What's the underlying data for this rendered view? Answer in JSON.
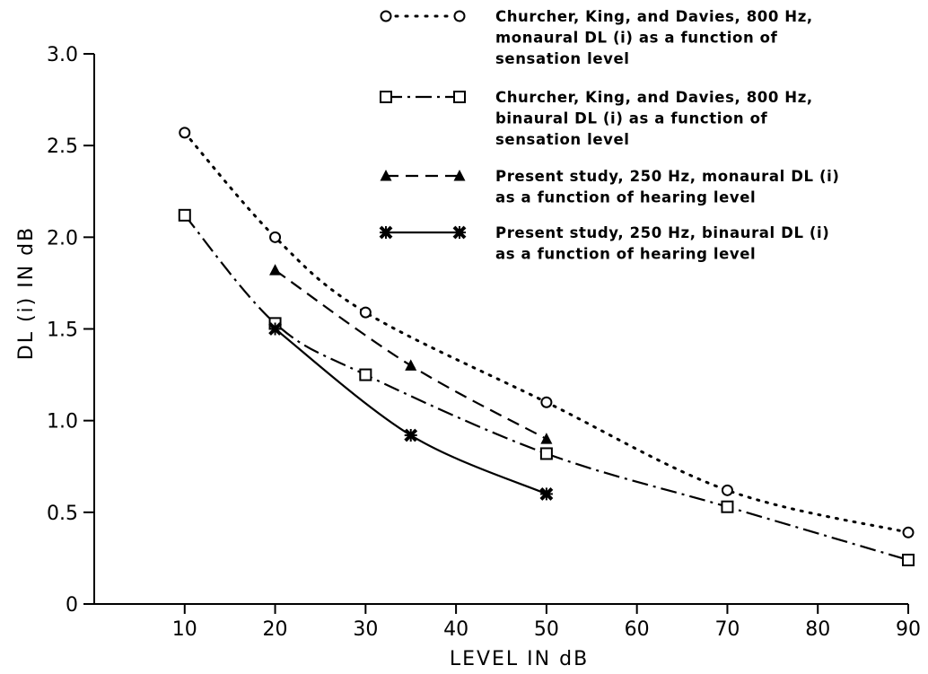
{
  "chart_data": {
    "type": "line",
    "title": "",
    "xlabel": "LEVEL IN dB",
    "ylabel": "DL (i) IN dB",
    "xlim": [
      0,
      90
    ],
    "ylim": [
      0,
      3.0
    ],
    "x_ticks": [
      "10",
      "20",
      "30",
      "40",
      "50",
      "60",
      "70",
      "80",
      "90"
    ],
    "y_ticks": [
      "0",
      "0.5",
      "1.0",
      "1.5",
      "2.0",
      "2.5",
      "3.0"
    ],
    "grid": false,
    "legend_position": "top-right",
    "series": [
      {
        "name": "Churcher, King, and Davies, 800 Hz, monaural DL (i) as a function of sensation level",
        "legend_lines": [
          "Churcher, King, and Davies, 800 Hz,",
          "monaural DL (i) as a function of",
          "sensation level"
        ],
        "marker": "circle",
        "line_style": "dotted",
        "points": [
          [
            10,
            2.57
          ],
          [
            20,
            2.0
          ],
          [
            30,
            1.59
          ],
          [
            50,
            1.1
          ],
          [
            70,
            0.62
          ],
          [
            90,
            0.39
          ]
        ]
      },
      {
        "name": "Churcher, King, and Davies, 800 Hz, binaural DL (i) as a function of sensation level",
        "legend_lines": [
          "Churcher, King, and Davies, 800 Hz,",
          "binaural DL (i) as a function of",
          "sensation level"
        ],
        "marker": "square",
        "line_style": "dashdot",
        "points": [
          [
            10,
            2.12
          ],
          [
            20,
            1.53
          ],
          [
            30,
            1.25
          ],
          [
            50,
            0.82
          ],
          [
            70,
            0.53
          ],
          [
            90,
            0.24
          ]
        ]
      },
      {
        "name": "Present study, 250 Hz, monaural DL (i) as a function of hearing level",
        "legend_lines": [
          "Present study, 250 Hz, monaural DL (i)",
          "as a function of hearing level"
        ],
        "marker": "triangle",
        "line_style": "dashed",
        "points": [
          [
            20,
            1.82
          ],
          [
            35,
            1.3
          ],
          [
            50,
            0.9
          ]
        ]
      },
      {
        "name": "Present study, 250 Hz, binaural DL (i) as a function of hearing level",
        "legend_lines": [
          "Present study, 250 Hz, binaural DL (i)",
          "as a function of hearing level"
        ],
        "marker": "cross",
        "line_style": "solid",
        "points": [
          [
            20,
            1.5
          ],
          [
            35,
            0.92
          ],
          [
            50,
            0.6
          ]
        ]
      }
    ]
  }
}
